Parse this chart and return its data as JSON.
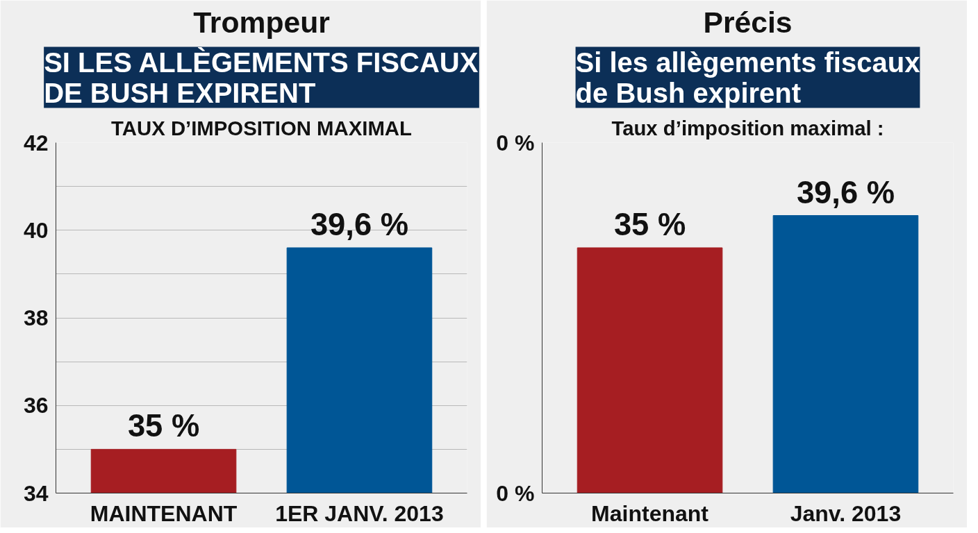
{
  "chart_data": [
    {
      "type": "bar",
      "title": "Trompeur",
      "subtitle": "SI LES ALLÈGEMENTS FISCAUX\nDE BUSH EXPIRENT",
      "annotations": [
        "TAUX D’IMPOSITION MAXIMAL"
      ],
      "categories": [
        "MAINTENANT",
        "1ER JANV. 2013"
      ],
      "values": [
        35,
        39.6
      ],
      "colors": [
        "#a61e22",
        "#005696"
      ],
      "value_labels": [
        "35 %",
        "39,6 %"
      ],
      "ylim": [
        34,
        42
      ],
      "yticks": [
        34,
        {
          "value": 35,
          "label": null
        },
        36,
        {
          "value": 37,
          "label": null
        },
        38,
        {
          "value": 39,
          "label": null
        },
        40,
        {
          "value": 41,
          "label": null
        },
        42
      ],
      "grid": "y"
    },
    {
      "type": "bar",
      "title": "Précis",
      "subtitle": "Si les allègements fiscaux\nde Bush expirent",
      "categories": [
        "Maintenant",
        "Janv. 2013"
      ],
      "values": [
        35,
        39.6
      ],
      "colors": [
        "#a61e22",
        "#005696"
      ],
      "value_labels": [
        "35 %",
        "39,6 %"
      ],
      "ylim": [
        0,
        50
      ],
      "annotations": [
        "Taux d’imposition maximal :",
        "0 %",
        "0 %"
      ],
      "grid": "y"
    }
  ]
}
